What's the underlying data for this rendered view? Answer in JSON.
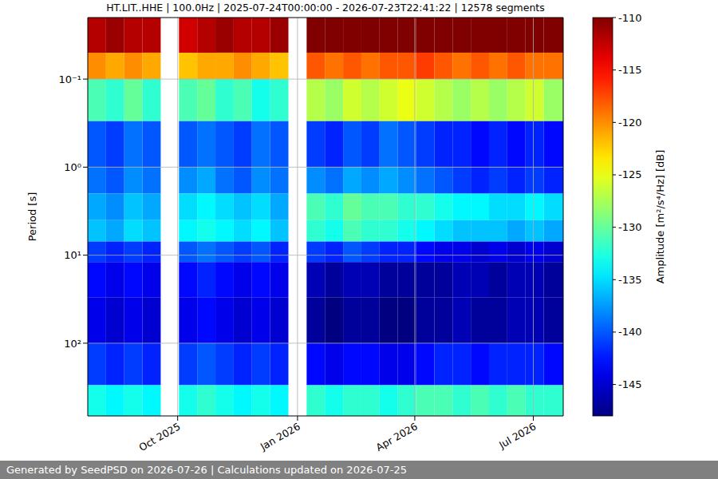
{
  "chart_data": {
    "type": "heatmap",
    "title": "HT.LIT..HHE | 100.0Hz | 2025-07-24T00:00:00 - 2026-07-23T22:41:22 | 12578 segments",
    "y_label": "Period [s]",
    "colorbar_label": "Amplitude [m²/s⁴/Hz] [dB]",
    "footer": "Generated by SeedPSD on 2026-07-26 | Calculations updated on 2026-07-25",
    "log": "y",
    "grid": true,
    "x": [
      "2025-07-24",
      "2025-08-07",
      "2025-08-21",
      "2025-09-04",
      "2025-09-18",
      "2025-10-02",
      "2025-10-16",
      "2025-10-30",
      "2025-11-13",
      "2025-11-27",
      "2025-12-11",
      "2025-12-25",
      "2026-01-08",
      "2026-01-22",
      "2026-02-05",
      "2026-02-19",
      "2026-03-05",
      "2026-03-19",
      "2026-04-02",
      "2026-04-16",
      "2026-04-30",
      "2026-05-14",
      "2026-05-28",
      "2026-06-11",
      "2026-06-25",
      "2026-07-09"
    ],
    "xlim": [
      "2025-07-24T00:00:00",
      "2026-07-23T22:41:22"
    ],
    "xticks": [
      {
        "value": "2025-10-01",
        "label": "Oct 2025"
      },
      {
        "value": "2026-01-01",
        "label": "Jan 2026"
      },
      {
        "value": "2026-04-01",
        "label": "Apr 2026"
      },
      {
        "value": "2026-07-01",
        "label": "Jul 2026"
      }
    ],
    "period_edges": [
      0.02,
      0.05,
      0.1,
      0.3,
      1,
      2,
      4,
      7,
      12,
      30,
      100,
      300,
      670
    ],
    "ylim": [
      0.02,
      670
    ],
    "yticks": [
      {
        "value": 0.1,
        "label": "10⁻¹"
      },
      {
        "value": 1,
        "label": "10⁰"
      },
      {
        "value": 10,
        "label": "10¹"
      },
      {
        "value": 100,
        "label": "10²"
      }
    ],
    "z": [
      [
        -112,
        -111,
        -112,
        -112,
        null,
        -113,
        -112,
        -111,
        -112,
        -112,
        -111,
        null,
        -110,
        -110,
        -110,
        -110,
        -110,
        -110,
        -110,
        -110,
        -110,
        -110,
        -110,
        -110,
        -110,
        -110
      ],
      [
        -120,
        -121,
        -120,
        -121,
        null,
        -122,
        -121,
        -121,
        -120,
        -121,
        -122,
        null,
        -118,
        -119,
        -118,
        -119,
        -118,
        -118,
        -117,
        -118,
        -119,
        -118,
        -119,
        -118,
        -119,
        -119
      ],
      [
        -131,
        -132,
        -130,
        -132,
        null,
        -131,
        -130,
        -132,
        -131,
        -133,
        -132,
        null,
        -127,
        -128,
        -126,
        -127,
        -126,
        -125,
        -126,
        -127,
        -128,
        -127,
        -128,
        -127,
        -126,
        -128
      ],
      [
        -140,
        -141,
        -139,
        -140,
        null,
        -140,
        -139,
        -140,
        -141,
        -139,
        -140,
        null,
        -141,
        -142,
        -140,
        -141,
        -139,
        -140,
        -141,
        -142,
        -142,
        -143,
        -142,
        -143,
        -142,
        -143
      ],
      [
        -139,
        -140,
        -138,
        -139,
        null,
        -138,
        -137,
        -139,
        -140,
        -138,
        -139,
        null,
        -138,
        -139,
        -137,
        -138,
        -137,
        -138,
        -139,
        -140,
        -141,
        -142,
        -141,
        -142,
        -141,
        -142
      ],
      [
        -137,
        -138,
        -136,
        -137,
        null,
        -135,
        -134,
        -135,
        -136,
        -135,
        -137,
        null,
        -131,
        -132,
        -130,
        -131,
        -131,
        -132,
        -132,
        -133,
        -134,
        -134,
        -135,
        -135,
        -134,
        -135
      ],
      [
        -136,
        -137,
        -135,
        -136,
        null,
        -134,
        -133,
        -134,
        -135,
        -134,
        -136,
        null,
        -132,
        -133,
        -131,
        -132,
        -132,
        -133,
        -134,
        -135,
        -136,
        -136,
        -136,
        -137,
        -136,
        -137
      ],
      [
        -141,
        -142,
        -141,
        -142,
        null,
        -140,
        -139,
        -140,
        -141,
        -140,
        -142,
        null,
        -141,
        -142,
        -140,
        -141,
        -142,
        -142,
        -143,
        -144,
        -144,
        -145,
        -144,
        -145,
        -144,
        -145
      ],
      [
        -143,
        -144,
        -143,
        -144,
        null,
        -143,
        -142,
        -143,
        -144,
        -143,
        -144,
        null,
        -146,
        -147,
        -146,
        -146,
        -147,
        -147,
        -147,
        -147,
        -146,
        -146,
        -147,
        -146,
        -146,
        -147
      ],
      [
        -144,
        -145,
        -144,
        -145,
        null,
        -144,
        -143,
        -144,
        -145,
        -144,
        -145,
        null,
        -147,
        -148,
        -147,
        -147,
        -148,
        -148,
        -147,
        -147,
        -146,
        -147,
        -147,
        -146,
        -146,
        -147
      ],
      [
        -141,
        -142,
        -141,
        -142,
        null,
        -141,
        -140,
        -141,
        -142,
        -141,
        -142,
        null,
        -143,
        -144,
        -143,
        -143,
        -144,
        -144,
        -143,
        -142,
        -142,
        -143,
        -142,
        -142,
        -142,
        -143
      ],
      [
        -133,
        -134,
        -133,
        -134,
        null,
        -133,
        -132,
        -133,
        -134,
        -133,
        -134,
        null,
        -132,
        -133,
        -132,
        -132,
        -133,
        -132,
        -131,
        -131,
        -132,
        -131,
        -132,
        -131,
        -132,
        -132
      ]
    ],
    "clim": [
      -148,
      -110
    ],
    "cticks": [
      -110,
      -115,
      -120,
      -125,
      -130,
      -135,
      -140,
      -145
    ]
  }
}
